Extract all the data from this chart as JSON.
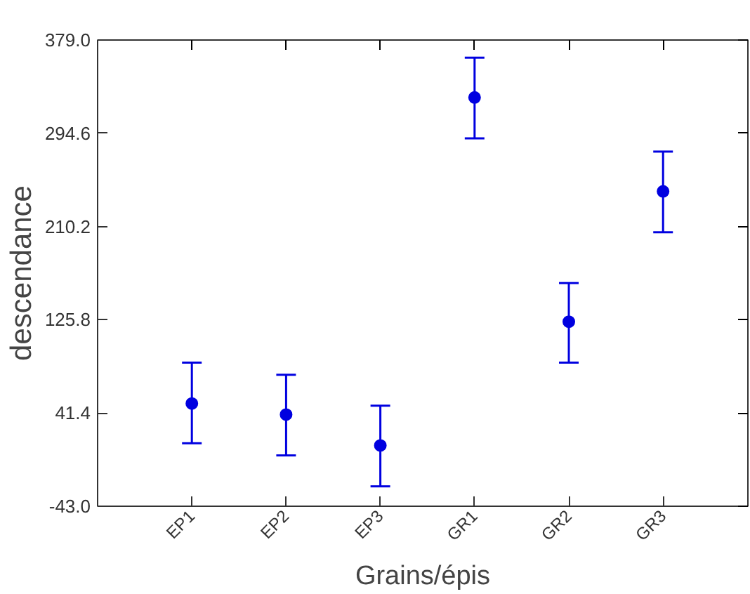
{
  "chart_data": {
    "type": "scatter",
    "xlabel": "Grains/épis",
    "ylabel": "descendance",
    "categories": [
      "EP1",
      "EP2",
      "EP3",
      "GR1",
      "GR2",
      "GR3"
    ],
    "series": [
      {
        "color": "#0000e0",
        "values": [
          50,
          40,
          12,
          327,
          124,
          242
        ],
        "errors": [
          [
            14,
            87
          ],
          [
            3,
            76
          ],
          [
            -25,
            48
          ],
          [
            290,
            363
          ],
          [
            87,
            159
          ],
          [
            205,
            278
          ]
        ]
      }
    ],
    "ylim": [
      -43.0,
      379.0
    ],
    "yticks": [
      {
        "value": -43.0,
        "label": "-43.0"
      },
      {
        "value": 41.4,
        "label": "41.4"
      },
      {
        "value": 125.8,
        "label": "125.8"
      },
      {
        "value": 210.2,
        "label": "210.2"
      },
      {
        "value": 294.6,
        "label": "294.6"
      },
      {
        "value": 379.0,
        "label": "379.0"
      }
    ],
    "marker": "circle",
    "grid": false
  }
}
